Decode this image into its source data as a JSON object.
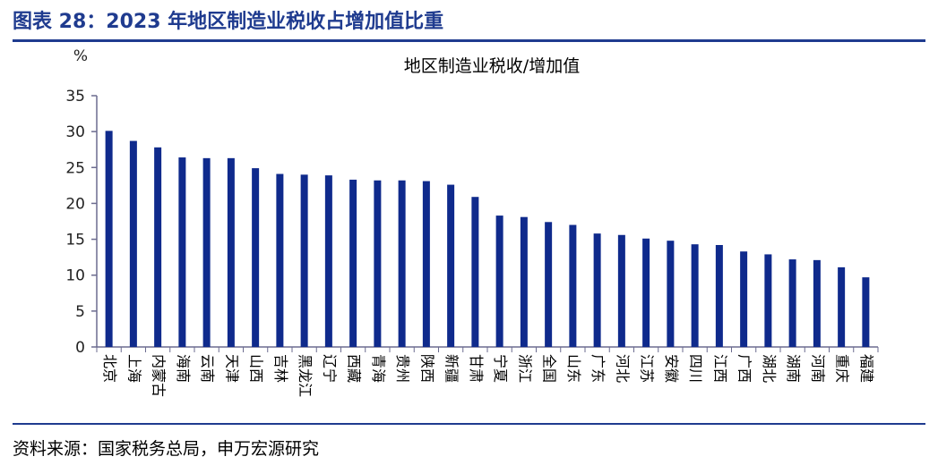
{
  "figure": {
    "title": "图表 28：2023 年地区制造业税收占增加值比重",
    "source": "资料来源：国家税务总局，申万宏源研究"
  },
  "colors": {
    "bar": "#0f2a8c",
    "accent": "#1f3b8f"
  },
  "chart_data": {
    "type": "bar",
    "title": "地区制造业税收/增加值",
    "ylabel": "%",
    "ylim": [
      0,
      35
    ],
    "yticks": [
      0,
      5,
      10,
      15,
      20,
      25,
      30,
      35
    ],
    "categories": [
      "北京",
      "上海",
      "内蒙古",
      "海南",
      "云南",
      "天津",
      "山西",
      "吉林",
      "黑龙江",
      "辽宁",
      "西藏",
      "青海",
      "贵州",
      "陕西",
      "新疆",
      "甘肃",
      "宁夏",
      "浙江",
      "全国",
      "山东",
      "广东",
      "河北",
      "江苏",
      "安徽",
      "四川",
      "江西",
      "广西",
      "湖北",
      "湖南",
      "河南",
      "重庆",
      "福建"
    ],
    "values": [
      30.1,
      28.7,
      27.8,
      26.4,
      26.3,
      26.3,
      24.9,
      24.1,
      24.0,
      23.9,
      23.3,
      23.2,
      23.2,
      23.1,
      22.6,
      20.9,
      18.3,
      18.1,
      17.4,
      17.0,
      15.8,
      15.6,
      15.1,
      14.8,
      14.3,
      14.2,
      13.3,
      12.9,
      12.2,
      12.1,
      11.1,
      9.7
    ],
    "grid": false,
    "legend": "none"
  }
}
